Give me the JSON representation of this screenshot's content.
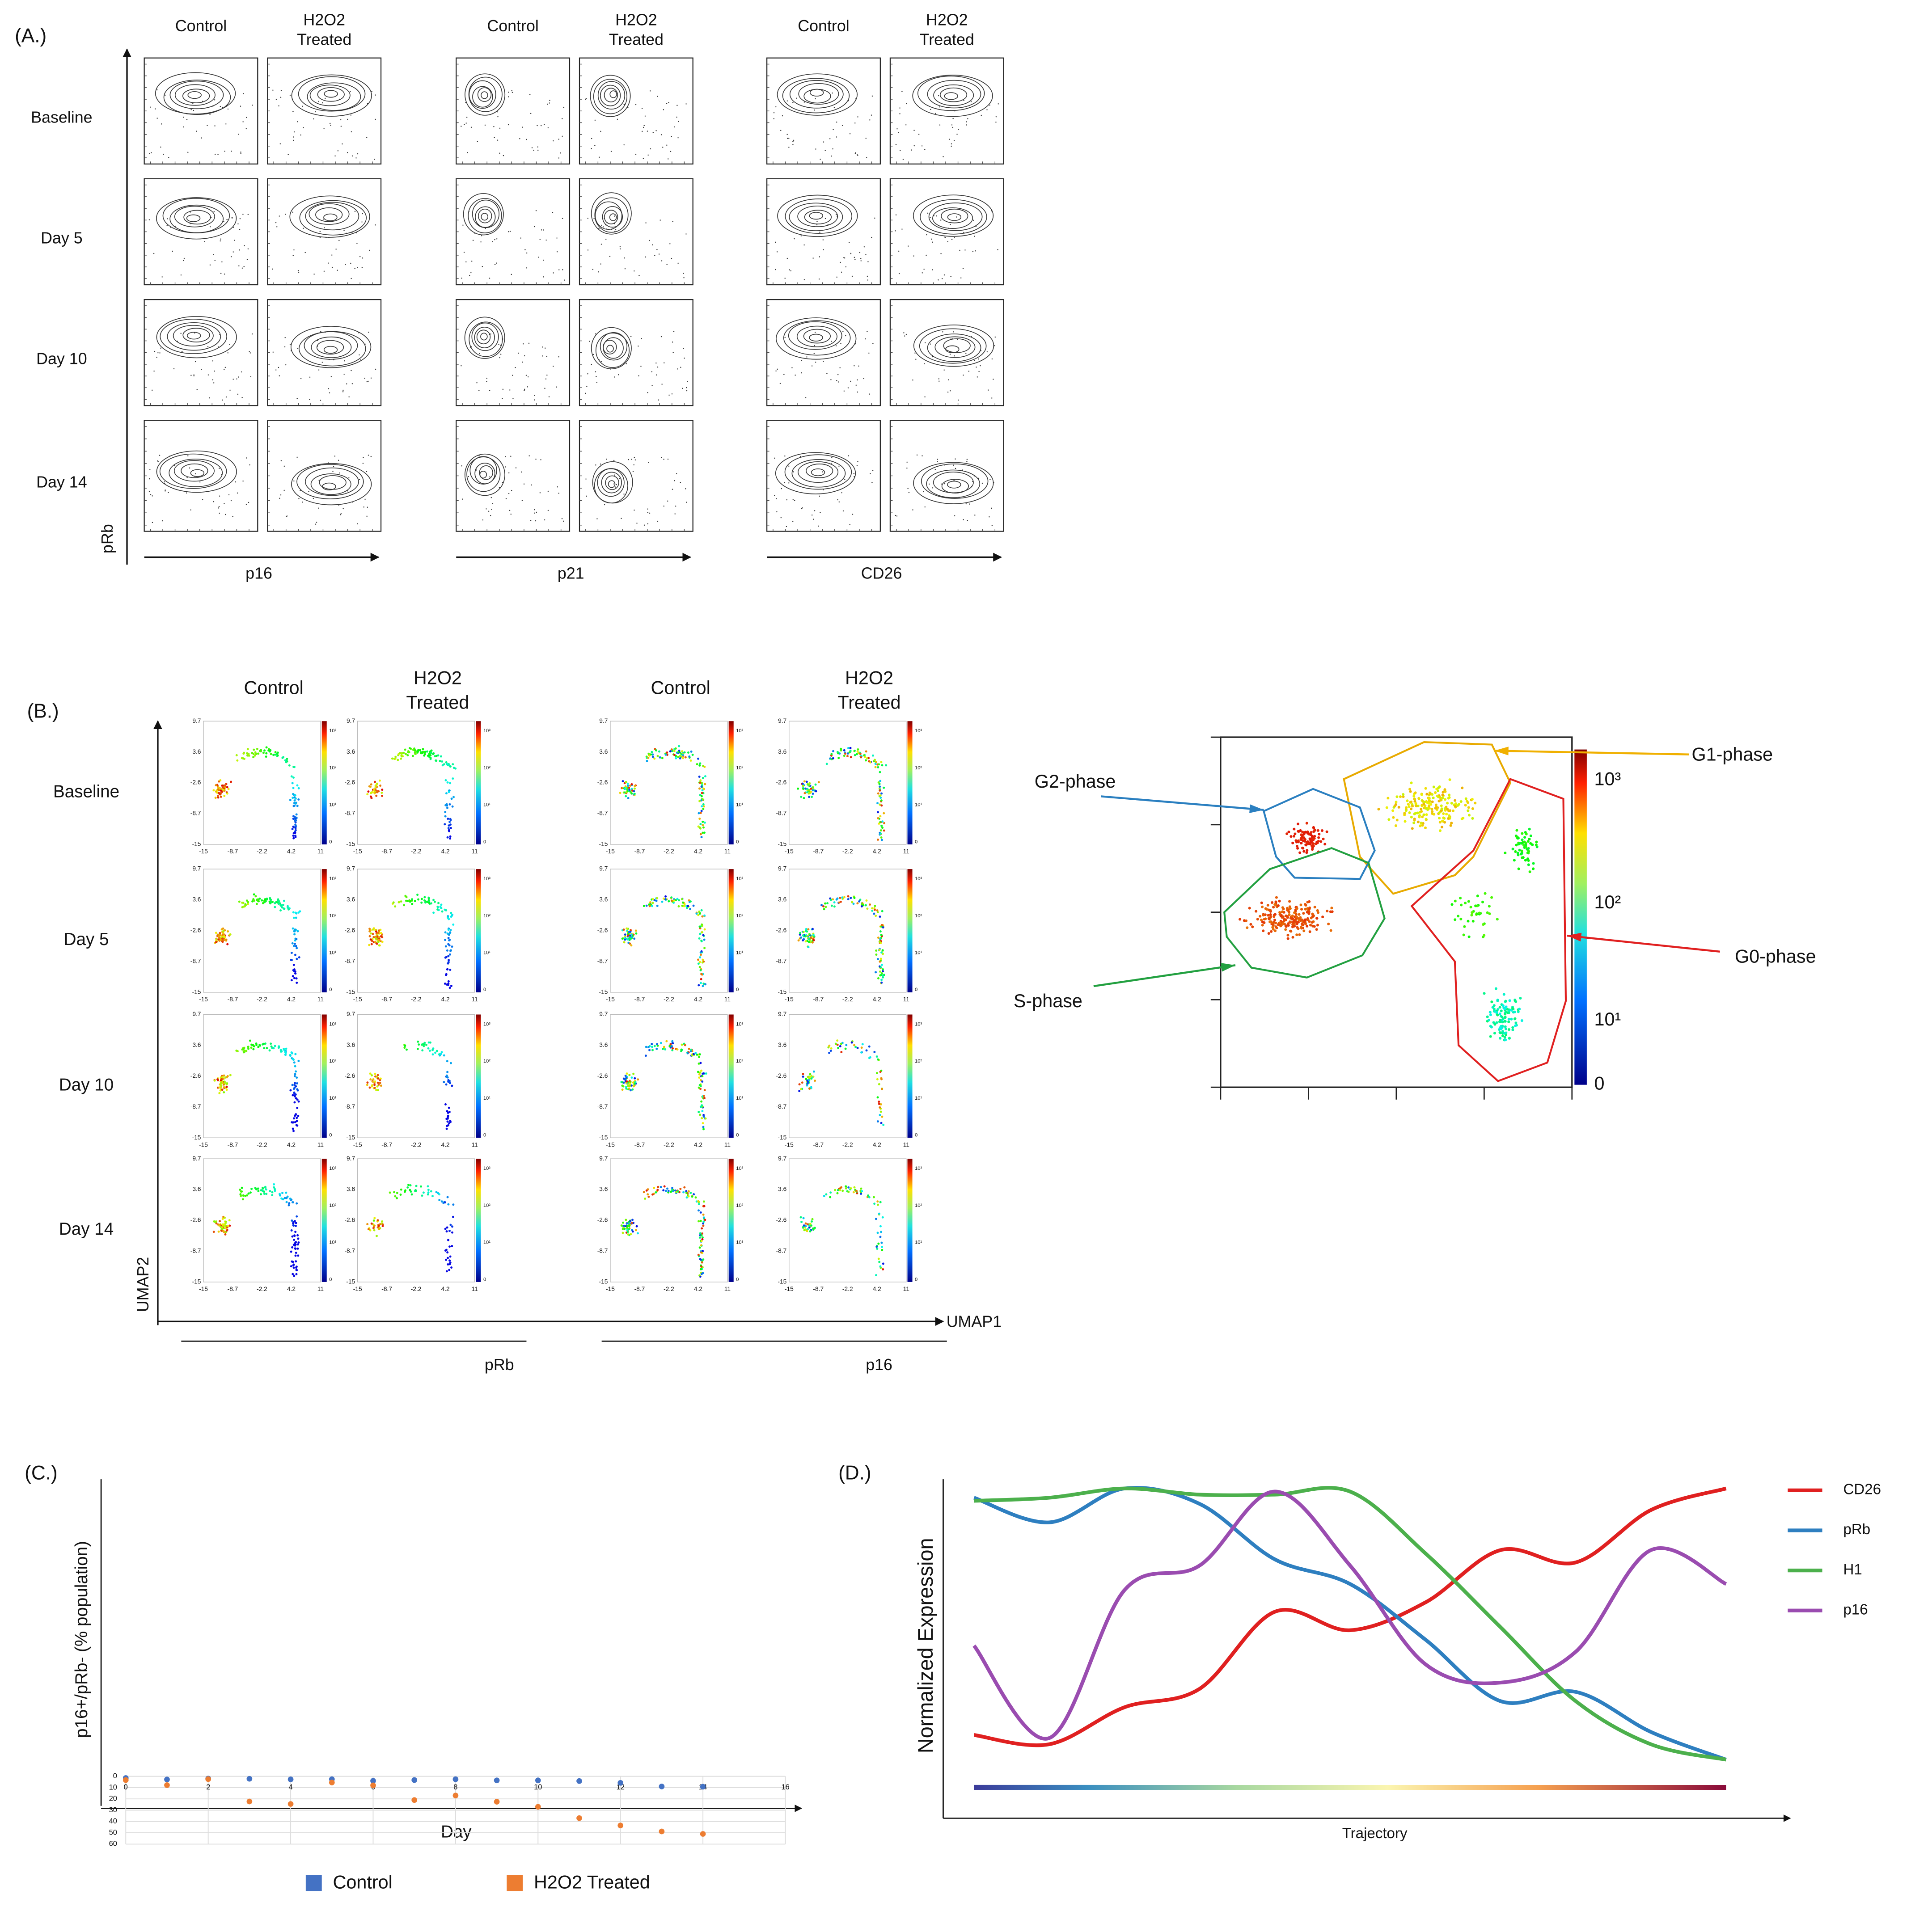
{
  "panel_a": {
    "label": "(A.)",
    "conditions": [
      [
        "Control"
      ],
      [
        "H2O2",
        "Treated"
      ]
    ],
    "rows": [
      "Baseline",
      "Day 5",
      "Day 10",
      "Day 14"
    ],
    "markers": [
      "p16",
      "p21",
      "CD26"
    ],
    "y_label": "pRb"
  },
  "panel_b": {
    "label": "(B.)",
    "conditions": [
      [
        "Control"
      ],
      [
        "H2O2",
        "Treated"
      ]
    ],
    "rows": [
      "Baseline",
      "Day 5",
      "Day 10",
      "Day 14"
    ],
    "markers": [
      "pRb",
      "p16"
    ],
    "y_label": "UMAP2",
    "x_label": "UMAP1",
    "umap_xticks": [
      "-15",
      "-8.7",
      "-2.2",
      "4.2",
      "11"
    ],
    "umap_yticks": [
      "9.7",
      "3.6",
      "-2.6",
      "-8.7",
      "-15"
    ],
    "colorbar_ticks": [
      "10³",
      "10²",
      "10¹",
      "0"
    ],
    "inset": {
      "phases": [
        "G1-phase",
        "G2-phase",
        "S-phase",
        "G0-phase"
      ]
    }
  },
  "chart_data": [
    {
      "type": "scatter",
      "label": "(C.)",
      "y_label": "p16+/pRb- (% population)",
      "x_label": "Day",
      "x": [
        0,
        1,
        2,
        3,
        4,
        5,
        6,
        7,
        8,
        9,
        10,
        11,
        12,
        13,
        14
      ],
      "series": [
        {
          "name": "Control",
          "color": "#4472c4",
          "values": [
            1.5,
            2.8,
            2,
            2.2,
            2.7,
            2.6,
            4,
            3.3,
            2.6,
            3.6,
            3.6,
            4.2,
            5.8,
            9,
            9.2
          ]
        },
        {
          "name": "H2O2 Treated",
          "color": "#ed7d31",
          "values": [
            3.3,
            7.8,
            2.5,
            22.3,
            24.5,
            5.5,
            8,
            21,
            17,
            22.5,
            27,
            37,
            43.5,
            48.8,
            51
          ]
        }
      ],
      "xlim": [
        0,
        16
      ],
      "xticks": [
        0,
        2,
        4,
        6,
        8,
        10,
        12,
        14,
        16
      ],
      "ylim": [
        0,
        60
      ],
      "yticks": [
        0,
        10,
        20,
        30,
        40,
        50,
        60
      ],
      "grid": true,
      "legend": "bottom"
    },
    {
      "type": "line",
      "label": "(D.)",
      "y_label": "Normalized Expression",
      "x_label": "Trajectory",
      "series": [
        {
          "name": "CD26",
          "color": "#e02020",
          "values": [
            0.17,
            0.14,
            0.26,
            0.32,
            0.57,
            0.51,
            0.6,
            0.77,
            0.73,
            0.9,
            0.97
          ]
        },
        {
          "name": "pRb",
          "color": "#2e7fc0",
          "values": [
            0.94,
            0.86,
            0.97,
            0.92,
            0.74,
            0.66,
            0.48,
            0.28,
            0.31,
            0.18,
            0.09
          ]
        },
        {
          "name": "H1",
          "color": "#4cb04c",
          "values": [
            0.93,
            0.94,
            0.97,
            0.95,
            0.95,
            0.96,
            0.76,
            0.52,
            0.28,
            0.14,
            0.09
          ]
        },
        {
          "name": "p16",
          "color": "#9a4cb0",
          "values": [
            0.46,
            0.16,
            0.64,
            0.72,
            0.96,
            0.72,
            0.4,
            0.34,
            0.44,
            0.77,
            0.66
          ]
        }
      ],
      "ylim": [
        0,
        1
      ],
      "legend": "right"
    }
  ]
}
